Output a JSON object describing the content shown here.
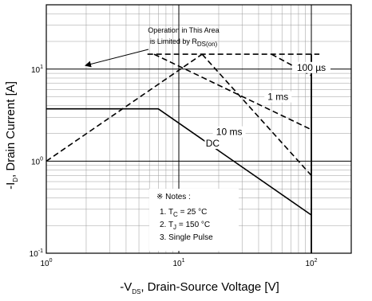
{
  "chart_data": {
    "type": "line",
    "title": "",
    "xscale": "log",
    "yscale": "log",
    "xlim": [
      1,
      200
    ],
    "ylim": [
      0.1,
      50
    ],
    "grid": true,
    "xticks": [
      1,
      10,
      100
    ],
    "yticks": [
      0.1,
      1,
      10
    ],
    "xlabel_parts": [
      "-V",
      "DS",
      ", Drain-Source Voltage [V]"
    ],
    "ylabel_parts": [
      "-I",
      "D",
      ", Drain Current [A]"
    ],
    "xtick_labels": [
      {
        "value": 1,
        "base": "10",
        "exp": "0"
      },
      {
        "value": 10,
        "base": "10",
        "exp": "1"
      },
      {
        "value": 100,
        "base": "10",
        "exp": "2"
      }
    ],
    "ytick_labels": [
      {
        "value": 0.1,
        "base": "10",
        "exp": "-1"
      },
      {
        "value": 1,
        "base": "10",
        "exp": "0"
      },
      {
        "value": 10,
        "base": "10",
        "exp": "1"
      }
    ],
    "series": [
      {
        "name": "100 µs",
        "style": "dashed",
        "points": [
          [
            50,
            14.5
          ],
          [
            100,
            8.5
          ]
        ]
      },
      {
        "name": "1 ms",
        "style": "dashed",
        "points": [
          [
            6.5,
            14.5
          ],
          [
            100,
            2.2
          ]
        ]
      },
      {
        "name": "10 ms",
        "style": "dashed",
        "points": [
          [
            15,
            14.5
          ],
          [
            100,
            0.7
          ]
        ]
      },
      {
        "name": "DC",
        "style": "solid",
        "points": [
          [
            1,
            3.7
          ],
          [
            7,
            3.7
          ],
          [
            100,
            0.26
          ]
        ]
      }
    ],
    "limit_lines": [
      {
        "style": "dashed",
        "points": [
          [
            1,
            1
          ],
          [
            15,
            14.5
          ]
        ]
      },
      {
        "style": "dashed",
        "points": [
          [
            5.8,
            14.5
          ],
          [
            115,
            14.5
          ]
        ]
      }
    ],
    "vertical_limit": {
      "x": 100,
      "ymin": 0.1,
      "ymax": 14.5
    },
    "series_labels": [
      {
        "text": "100 µs",
        "x": 100,
        "y": 10
      },
      {
        "text": "1 ms",
        "x": 56,
        "y": 4.8
      },
      {
        "text": "10 ms",
        "x": 24,
        "y": 2.0
      },
      {
        "text": "DC",
        "x": 18,
        "y": 1.5
      }
    ],
    "annotation": {
      "line1": "Operation in This Area",
      "line2_prefix": "is Limited by R",
      "line2_sub": "DS(on)",
      "arrow_tip": {
        "x": 2.0,
        "y": 11
      }
    },
    "notes": {
      "title": "※ Notes :",
      "item1_prefix": "1. T",
      "item1_sub": "C",
      "item1_suffix": " = 25 °C",
      "item2_prefix": "2. T",
      "item2_sub": "J",
      "item2_suffix": " = 150 °C",
      "item3": "3. Single Pulse"
    }
  }
}
